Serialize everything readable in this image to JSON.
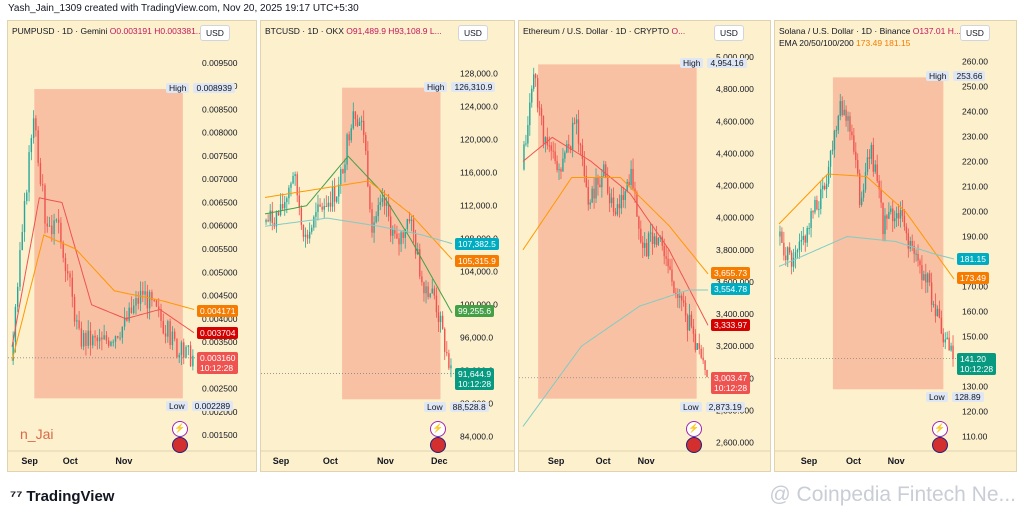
{
  "header": {
    "text": "Yash_Jain_1309 created with TradingView.com, Nov 20, 2025 19:17 UTC+5:30"
  },
  "footer": {
    "logo": "TradingView",
    "watermark": "@ Coinpedia Fintech Ne..."
  },
  "colors": {
    "up": "#26a69a",
    "down": "#ef5350",
    "range": "#f8a88c",
    "bg": "#fdf0cd"
  },
  "chart_data": [
    {
      "type": "candlestick",
      "title": "PUMPUSD · 1D · Gemini",
      "title_values": "O0.003191 H0.003381...",
      "currency": "USD",
      "watermark_text": "n_Jai",
      "yticks": [
        "0.009500",
        "0.009000",
        "0.008500",
        "0.008000",
        "0.007500",
        "0.007000",
        "0.006500",
        "0.006000",
        "0.005500",
        "0.005000",
        "0.004500",
        "0.004000",
        "0.003500",
        "0.003000",
        "0.002500",
        "0.002000",
        "0.001500"
      ],
      "ylim": [
        0.0012,
        0.0098
      ],
      "xticks": [
        "Sep",
        "Oct",
        "Nov"
      ],
      "high_label": "High",
      "high_value": "0.008939",
      "low_label": "Low",
      "low_value": "0.002289",
      "price_tags": [
        {
          "value": "0.004171",
          "y": 0.004171,
          "color": "#f57c00"
        },
        {
          "value": "0.003704",
          "y": 0.003704,
          "color": "#d50000"
        },
        {
          "value": "0.003160",
          "y": 0.00316,
          "color": "#ef5350",
          "sub": "10:12:28"
        }
      ],
      "range": {
        "x0": 0.14,
        "x1": 0.93,
        "y0": 0.002289,
        "y1": 0.008939
      },
      "candles": {
        "n": 80,
        "start": 0.0031,
        "path": [
          [
            0,
            0.0031
          ],
          [
            10,
            0.0085
          ],
          [
            15,
            0.0062
          ],
          [
            22,
            0.0058
          ],
          [
            30,
            0.0036
          ],
          [
            40,
            0.0035
          ],
          [
            50,
            0.0039
          ],
          [
            58,
            0.0046
          ],
          [
            66,
            0.004
          ],
          [
            74,
            0.0033
          ],
          [
            80,
            0.0032
          ]
        ],
        "seed": 3
      },
      "mas": [
        {
          "color": "#ef5350",
          "path": [
            [
              0,
              0.0034
            ],
            [
              12,
              0.0066
            ],
            [
              22,
              0.0065
            ],
            [
              35,
              0.0043
            ],
            [
              50,
              0.004
            ],
            [
              65,
              0.0042
            ],
            [
              80,
              0.0037
            ]
          ]
        },
        {
          "color": "#ff9800",
          "path": [
            [
              0,
              0.0031
            ],
            [
              14,
              0.0058
            ],
            [
              28,
              0.0055
            ],
            [
              45,
              0.0046
            ],
            [
              65,
              0.0044
            ],
            [
              80,
              0.0042
            ]
          ]
        }
      ]
    },
    {
      "type": "candlestick",
      "title": "BTCUSD · 1D · OKX",
      "title_values": "O91,489.9 H93,108.9 L...",
      "currency": "USD",
      "yticks": [
        "128,000.0",
        "124,000.0",
        "120,000.0",
        "116,000.0",
        "112,000.0",
        "108,000.0",
        "104,000.0",
        "100,000.0",
        "96,000.0",
        "92,000.0",
        "88,000.0",
        "84,000.0"
      ],
      "ylim": [
        82500,
        131000
      ],
      "xticks": [
        "Sep",
        "Oct",
        "Nov",
        "Dec"
      ],
      "high_label": "High",
      "high_value": "126,310.9",
      "low_label": "Low",
      "low_value": "88,528.8",
      "price_tags": [
        {
          "value": "107,382.5",
          "y": 107382.5,
          "color": "#00acc1"
        },
        {
          "value": "105,315.9",
          "y": 105315.9,
          "color": "#f57c00"
        },
        {
          "value": "99,255.6",
          "y": 99255.6,
          "color": "#43a047"
        },
        {
          "value": "91,644.9",
          "y": 91644.9,
          "color": "#089981",
          "sub": "10:12:28"
        }
      ],
      "range": {
        "x0": 0.42,
        "x1": 0.93,
        "y0": 88528.8,
        "y1": 126310.9
      },
      "candles": {
        "n": 90,
        "start": 110000,
        "path": [
          [
            0,
            110000
          ],
          [
            8,
            111000
          ],
          [
            14,
            116000
          ],
          [
            20,
            108000
          ],
          [
            28,
            112000
          ],
          [
            36,
            114000
          ],
          [
            43,
            124000
          ],
          [
            48,
            121000
          ],
          [
            52,
            110000
          ],
          [
            58,
            112000
          ],
          [
            64,
            107000
          ],
          [
            70,
            111000
          ],
          [
            76,
            103000
          ],
          [
            82,
            101000
          ],
          [
            90,
            91500
          ]
        ],
        "seed": 7
      },
      "mas": [
        {
          "color": "#43a047",
          "path": [
            [
              0,
              111000
            ],
            [
              20,
              112000
            ],
            [
              40,
              118000
            ],
            [
              55,
              114000
            ],
            [
              70,
              108000
            ],
            [
              90,
              99000
            ]
          ]
        },
        {
          "color": "#ff9800",
          "path": [
            [
              0,
              113000
            ],
            [
              25,
              114000
            ],
            [
              50,
              115000
            ],
            [
              70,
              111000
            ],
            [
              90,
              105500
            ]
          ]
        },
        {
          "color": "#80cbc4",
          "path": [
            [
              0,
              109500
            ],
            [
              30,
              110500
            ],
            [
              55,
              109500
            ],
            [
              75,
              108500
            ],
            [
              90,
              107400
            ]
          ]
        }
      ]
    },
    {
      "type": "candlestick",
      "title": "Ethereum / U.S. Dollar · 1D · CRYPTO",
      "title_values": "O...",
      "currency": "USD",
      "yticks": [
        "5,000.000",
        "4,800.000",
        "4,600.000",
        "4,400.000",
        "4,200.000",
        "4,000.000",
        "3,800.000",
        "3,600.000",
        "3,400.000",
        "3,200.000",
        "3,000.000",
        "2,800.000",
        "2,600.000"
      ],
      "ylim": [
        2560,
        5050
      ],
      "xticks": [
        "Sep",
        "Oct",
        "Nov"
      ],
      "high_label": "High",
      "high_value": "4,954.16",
      "low_label": "Low",
      "low_value": "2,873.19",
      "price_tags": [
        {
          "value": "3,655.73",
          "y": 3655.73,
          "color": "#f57c00"
        },
        {
          "value": "3,554.78",
          "y": 3554.78,
          "color": "#00acc1"
        },
        {
          "value": "3,333.97",
          "y": 3333.97,
          "color": "#d50000"
        },
        {
          "value": "3,003.47",
          "y": 3003.47,
          "color": "#ef5350",
          "sub": "10:12:28"
        }
      ],
      "range": {
        "x0": 0.1,
        "x1": 0.93,
        "y0": 2873.19,
        "y1": 4954.16
      },
      "candles": {
        "n": 95,
        "start": 4300,
        "path": [
          [
            0,
            4300
          ],
          [
            6,
            4900
          ],
          [
            12,
            4450
          ],
          [
            20,
            4300
          ],
          [
            28,
            4600
          ],
          [
            34,
            4100
          ],
          [
            42,
            4300
          ],
          [
            48,
            4000
          ],
          [
            56,
            4300
          ],
          [
            62,
            3800
          ],
          [
            70,
            3900
          ],
          [
            78,
            3600
          ],
          [
            84,
            3400
          ],
          [
            95,
            3000
          ]
        ],
        "seed": 11
      },
      "mas": [
        {
          "color": "#ef5350",
          "path": [
            [
              0,
              4350
            ],
            [
              15,
              4500
            ],
            [
              35,
              4350
            ],
            [
              55,
              4150
            ],
            [
              75,
              3800
            ],
            [
              95,
              3330
            ]
          ]
        },
        {
          "color": "#ff9800",
          "path": [
            [
              0,
              3800
            ],
            [
              25,
              4250
            ],
            [
              50,
              4250
            ],
            [
              75,
              3950
            ],
            [
              95,
              3650
            ]
          ]
        },
        {
          "color": "#80cbc4",
          "path": [
            [
              0,
              2700
            ],
            [
              30,
              3200
            ],
            [
              60,
              3450
            ],
            [
              85,
              3550
            ],
            [
              95,
              3550
            ]
          ]
        }
      ]
    },
    {
      "type": "candlestick",
      "title": "Solana / U.S. Dollar · 1D · Binance",
      "title_values": "O137.01 H...",
      "subtitle": "EMA 20/50/100/200",
      "subtitle_values": "173.49 181.15",
      "currency": "USD",
      "yticks": [
        "260.00",
        "250.00",
        "240.00",
        "230.00",
        "220.00",
        "210.00",
        "200.00",
        "190.00",
        "180.00",
        "170.00",
        "160.00",
        "150.00",
        "140.00",
        "130.00",
        "120.00",
        "110.00"
      ],
      "ylim": [
        105,
        265
      ],
      "xticks": [
        "Sep",
        "Oct",
        "Nov"
      ],
      "high_label": "High",
      "high_value": "253.66",
      "low_label": "Low",
      "low_value": "128.89",
      "price_tags": [
        {
          "value": "181.15",
          "y": 181.15,
          "color": "#00acc1"
        },
        {
          "value": "173.49",
          "y": 173.49,
          "color": "#f57c00"
        },
        {
          "value": "141.20",
          "y": 141.2,
          "color": "#089981",
          "sub": "10:12:28"
        }
      ],
      "range": {
        "x0": 0.32,
        "x1": 0.93,
        "y0": 128.89,
        "y1": 253.66
      },
      "candles": {
        "n": 90,
        "start": 190,
        "path": [
          [
            0,
            190
          ],
          [
            8,
            178
          ],
          [
            16,
            195
          ],
          [
            24,
            210
          ],
          [
            32,
            245
          ],
          [
            38,
            232
          ],
          [
            42,
            205
          ],
          [
            48,
            225
          ],
          [
            54,
            195
          ],
          [
            62,
            200
          ],
          [
            70,
            182
          ],
          [
            78,
            170
          ],
          [
            84,
            150
          ],
          [
            90,
            141
          ]
        ],
        "seed": 5
      },
      "mas": [
        {
          "color": "#ff9800",
          "path": [
            [
              0,
              195
            ],
            [
              25,
              215
            ],
            [
              45,
              214
            ],
            [
              65,
              200
            ],
            [
              90,
              173
            ]
          ]
        },
        {
          "color": "#80cbc4",
          "path": [
            [
              0,
              178
            ],
            [
              35,
              190
            ],
            [
              60,
              188
            ],
            [
              80,
              183
            ],
            [
              90,
              181
            ]
          ]
        }
      ]
    }
  ]
}
